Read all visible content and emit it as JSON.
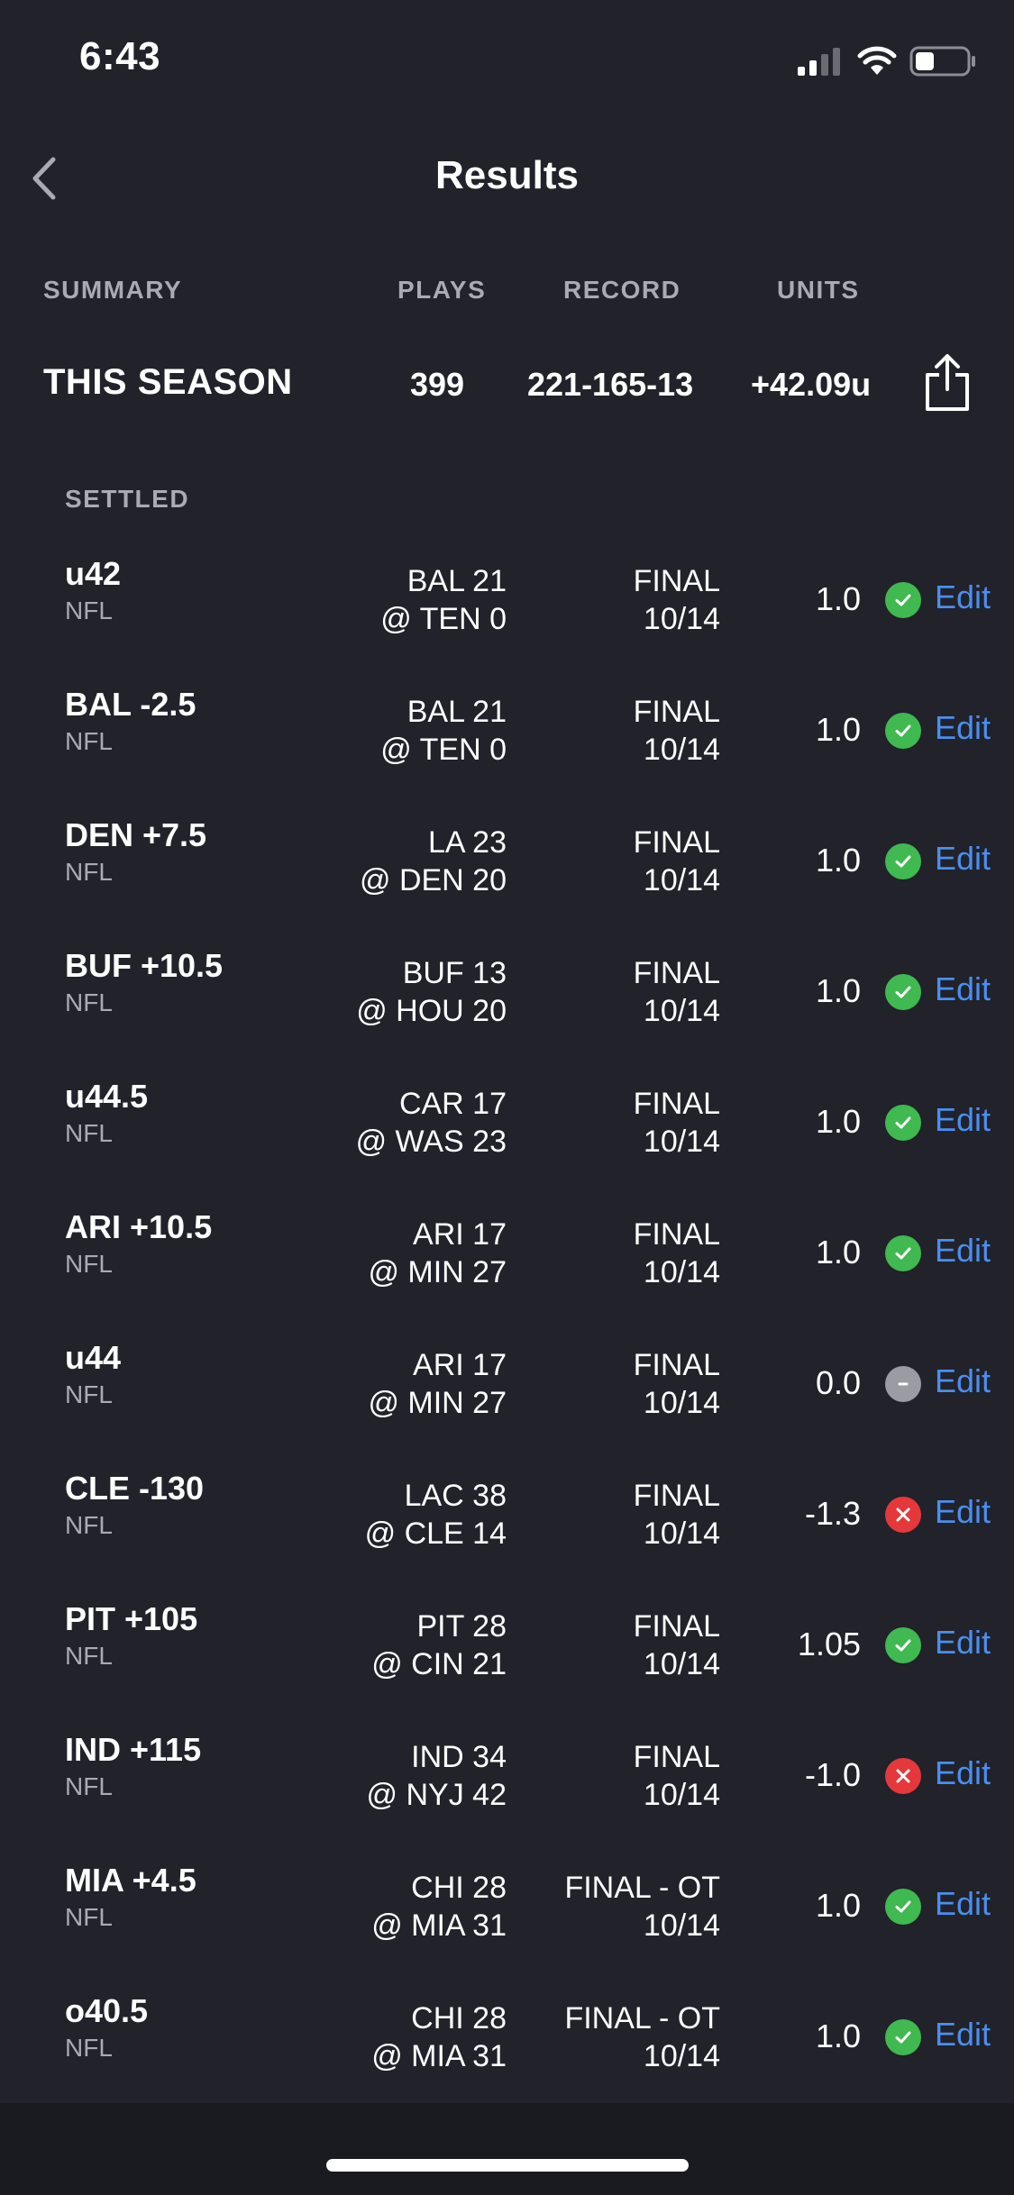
{
  "status_bar": {
    "time": "6:43"
  },
  "nav": {
    "title": "Results"
  },
  "summary": {
    "headers": {
      "summary": "SUMMARY",
      "plays": "PLAYS",
      "record": "RECORD",
      "units": "UNITS"
    },
    "row": {
      "label": "THIS SEASON",
      "plays": "399",
      "record": "221-165-13",
      "units": "+42.09u"
    }
  },
  "settled": {
    "header": "SETTLED",
    "edit_label": "Edit",
    "rows": [
      {
        "title": "u42",
        "league": "NFL",
        "game_line1": "BAL 21",
        "game_line2": "@ TEN 0",
        "status_line1": "FINAL",
        "status_line2": "10/14",
        "units": "1.0",
        "result": "win"
      },
      {
        "title": "BAL -2.5",
        "league": "NFL",
        "game_line1": "BAL 21",
        "game_line2": "@ TEN 0",
        "status_line1": "FINAL",
        "status_line2": "10/14",
        "units": "1.0",
        "result": "win"
      },
      {
        "title": "DEN +7.5",
        "league": "NFL",
        "game_line1": "LA 23",
        "game_line2": "@ DEN 20",
        "status_line1": "FINAL",
        "status_line2": "10/14",
        "units": "1.0",
        "result": "win"
      },
      {
        "title": "BUF +10.5",
        "league": "NFL",
        "game_line1": "BUF 13",
        "game_line2": "@ HOU 20",
        "status_line1": "FINAL",
        "status_line2": "10/14",
        "units": "1.0",
        "result": "win"
      },
      {
        "title": "u44.5",
        "league": "NFL",
        "game_line1": "CAR 17",
        "game_line2": "@ WAS 23",
        "status_line1": "FINAL",
        "status_line2": "10/14",
        "units": "1.0",
        "result": "win"
      },
      {
        "title": "ARI +10.5",
        "league": "NFL",
        "game_line1": "ARI 17",
        "game_line2": "@ MIN 27",
        "status_line1": "FINAL",
        "status_line2": "10/14",
        "units": "1.0",
        "result": "win"
      },
      {
        "title": "u44",
        "league": "NFL",
        "game_line1": "ARI 17",
        "game_line2": "@ MIN 27",
        "status_line1": "FINAL",
        "status_line2": "10/14",
        "units": "0.0",
        "result": "push"
      },
      {
        "title": "CLE -130",
        "league": "NFL",
        "game_line1": "LAC 38",
        "game_line2": "@ CLE 14",
        "status_line1": "FINAL",
        "status_line2": "10/14",
        "units": "-1.3",
        "result": "loss"
      },
      {
        "title": "PIT +105",
        "league": "NFL",
        "game_line1": "PIT 28",
        "game_line2": "@ CIN 21",
        "status_line1": "FINAL",
        "status_line2": "10/14",
        "units": "1.05",
        "result": "win"
      },
      {
        "title": "IND +115",
        "league": "NFL",
        "game_line1": "IND 34",
        "game_line2": "@ NYJ 42",
        "status_line1": "FINAL",
        "status_line2": "10/14",
        "units": "-1.0",
        "result": "loss"
      },
      {
        "title": "MIA +4.5",
        "league": "NFL",
        "game_line1": "CHI 28",
        "game_line2": "@ MIA 31",
        "status_line1": "FINAL - OT",
        "status_line2": "10/14",
        "units": "1.0",
        "result": "win"
      },
      {
        "title": "o40.5",
        "league": "NFL",
        "game_line1": "CHI 28",
        "game_line2": "@ MIA 31",
        "status_line1": "FINAL - OT",
        "status_line2": "10/14",
        "units": "1.0",
        "result": "win"
      }
    ]
  },
  "colors": {
    "background": "#21222a",
    "win": "#3fb950",
    "loss": "#e5383b",
    "push": "#9a9ba3",
    "link": "#4a8ff0",
    "muted_text": "#a9abb3"
  }
}
